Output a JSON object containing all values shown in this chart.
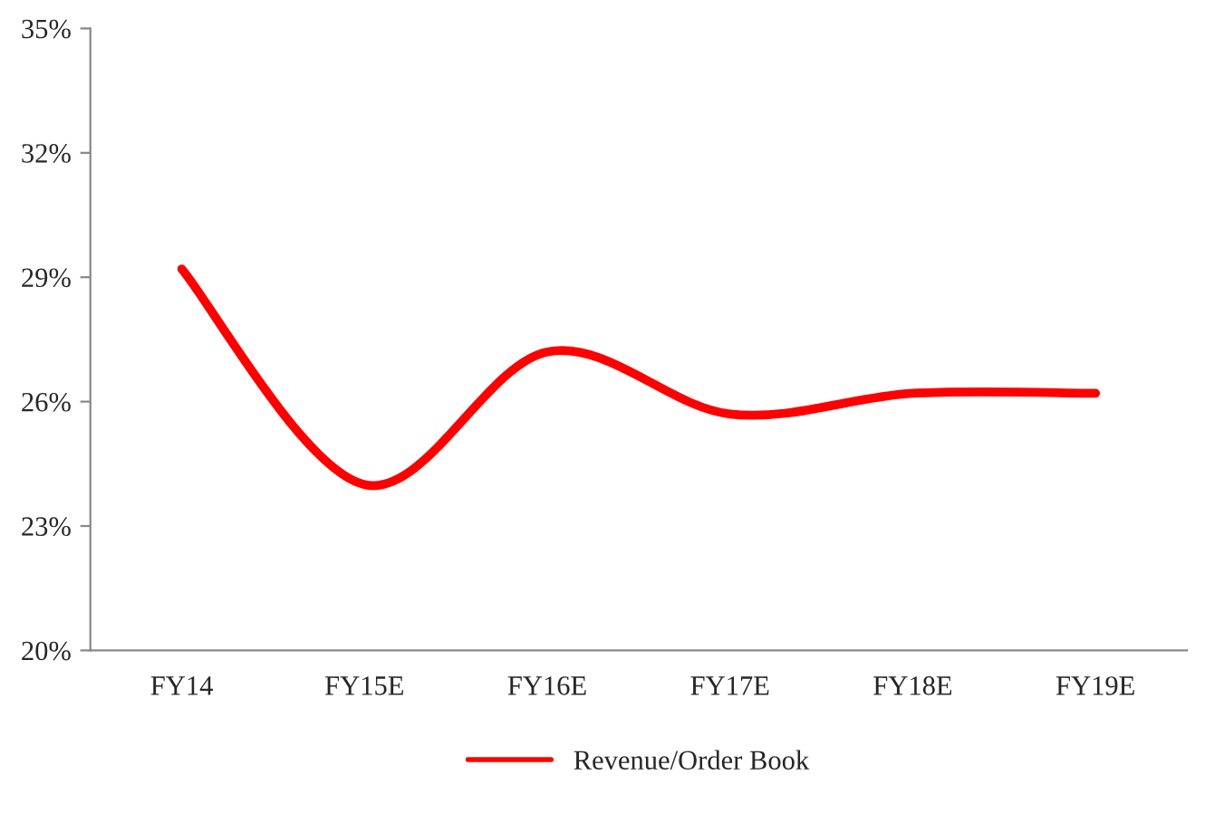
{
  "chart_data": {
    "type": "line",
    "categories": [
      "FY14",
      "FY15E",
      "FY16E",
      "FY17E",
      "FY18E",
      "FY19E"
    ],
    "series": [
      {
        "name": "Revenue/Order Book",
        "color": "#ff0000",
        "values": [
          29.2,
          24.0,
          27.2,
          25.7,
          26.2,
          26.2
        ]
      }
    ],
    "ylim": [
      20,
      35
    ],
    "yticks": [
      {
        "value": 20,
        "label": "20%"
      },
      {
        "value": 23,
        "label": "23%"
      },
      {
        "value": 26,
        "label": "26%"
      },
      {
        "value": 29,
        "label": "29%"
      },
      {
        "value": 32,
        "label": "32%"
      },
      {
        "value": 35,
        "label": "35%"
      }
    ],
    "grid": false,
    "legend": "bottom",
    "marker": "none",
    "line_style": "solid"
  }
}
